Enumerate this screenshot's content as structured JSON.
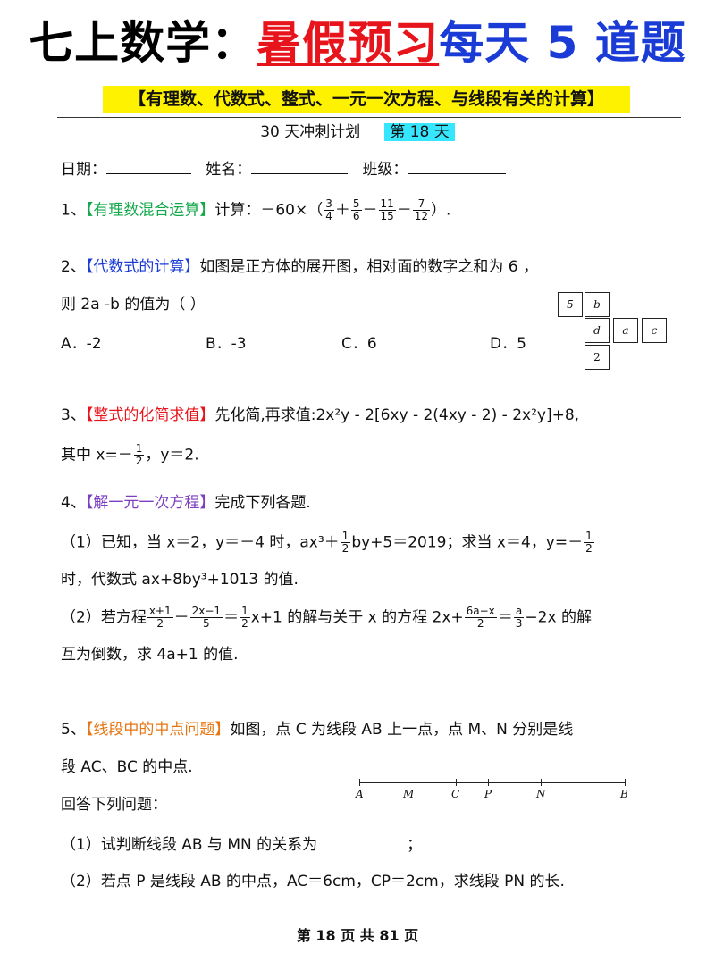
{
  "header": {
    "title_part1": "七上数学：",
    "title_part2": "暑假预习",
    "title_part3": "每天 5 道题",
    "subtitle": "【有理数、代数式、整式、一元一次方程、与线段有关的计算】",
    "plan_text": "30 天冲刺计划",
    "day_badge": "第 18 天",
    "date_label": "日期：",
    "name_label": "姓名：",
    "class_label": "班级："
  },
  "q1": {
    "num": "1、",
    "tag": "【有理数混合运算】",
    "prefix": "计算：－60×（",
    "f1n": "3",
    "f1d": "4",
    "op1": "＋",
    "f2n": "5",
    "f2d": "6",
    "op2": "－",
    "f3n": "11",
    "f3d": "15",
    "op3": "－",
    "f4n": "7",
    "f4d": "12",
    "suffix": "）."
  },
  "q2": {
    "num": "2、",
    "tag": "【代数式的计算】",
    "text1": "如图是正方体的展开图，相对面的数字之和为 6 ，",
    "text2": "则 2a -b  的值为（      ）",
    "optA": "A．-2",
    "optB": "B．-3",
    "optC": "C．6",
    "optD": "D．5",
    "net": {
      "c5": "5",
      "cb": "b",
      "cd": "d",
      "ca": "a",
      "cc": "c",
      "c2": "2"
    }
  },
  "q3": {
    "num": "3、",
    "tag": "【整式的化简求值】",
    "text1": "先化简,再求值:2x²y - 2[6xy - 2(4xy - 2) - 2x²y]+8,",
    "cond_prefix": "其中 x=－",
    "fn": "1",
    "fd": "2",
    "cond_suffix": "，y＝2."
  },
  "q4": {
    "num": "4、",
    "tag": "【解一元一次方程】",
    "intro": "完成下列各题.",
    "p1_a": "（1）已知，当 x＝2，y＝－4 时，ax³＋",
    "p1_fn": "1",
    "p1_fd": "2",
    "p1_b": "by+5＝2019；求当 x＝4，y=－",
    "p1_fn2": "1",
    "p1_fd2": "2",
    "p1_line2": "时，代数式 ax+8by³+1013 的值.",
    "p2_a": "（2）若方程",
    "p2_f1n": "x+1",
    "p2_f1d": "2",
    "p2_op1": "－",
    "p2_f2n": "2x−1",
    "p2_f2d": "5",
    "p2_eq": "＝",
    "p2_f3n": "1",
    "p2_f3d": "2",
    "p2_b": "x+1 的解与关于 x 的方程 2x+",
    "p2_f4n": "6a−x",
    "p2_f4d": "2",
    "p2_eq2": "＝",
    "p2_f5n": "a",
    "p2_f5d": "3",
    "p2_c": "−2x 的解",
    "p2_line2": "互为倒数，求 4a+1 的值."
  },
  "q5": {
    "num": "5、",
    "tag": "【线段中的中点问题】",
    "text1": "如图，点 C 为线段 AB 上一点，点 M、N 分别是线",
    "text2": "段 AC、BC 的中点.",
    "text3": "回答下列问题：",
    "p1": "（1）试判断线段 AB 与 MN 的关系为",
    "p1_end": "；",
    "p2": "（2）若点 P 是线段 AB 的中点，AC＝6cm，CP＝2cm，求线段 PN 的长.",
    "labels": {
      "A": "A",
      "M": "M",
      "C": "C",
      "P": "P",
      "N": "N",
      "B": "B"
    }
  },
  "footer": "第 18 页 共 81 页",
  "colors": {
    "red": "#e8141c",
    "blue": "#1a3bd6",
    "green": "#13a84a",
    "purple": "#7b3fbf",
    "orange": "#e67512",
    "highlight": "#fff200",
    "day_badge": "#36e6ff"
  }
}
